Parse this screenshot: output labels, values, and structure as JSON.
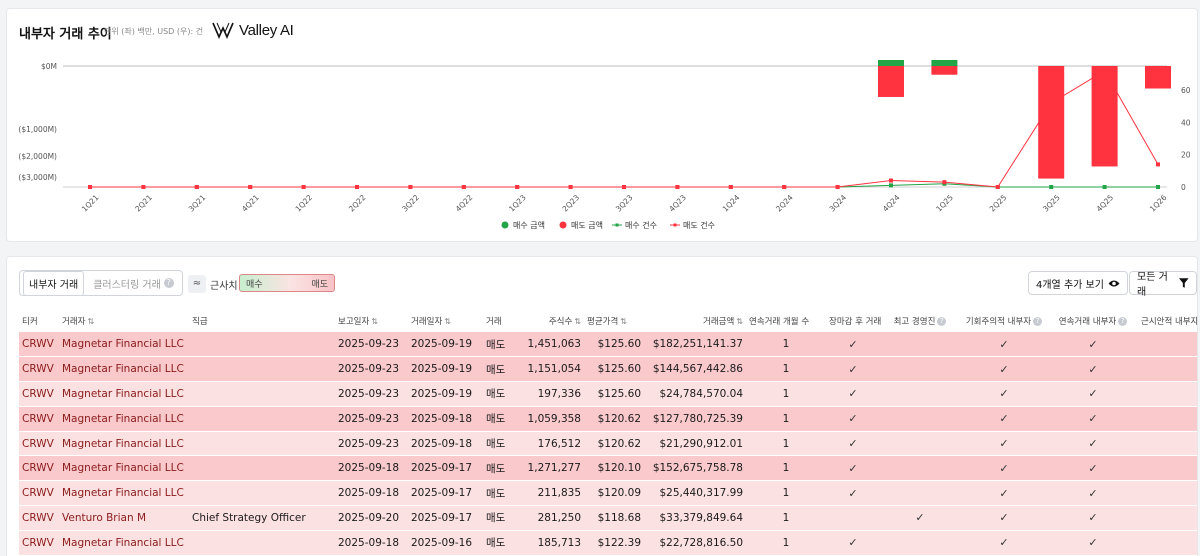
{
  "chart": {
    "title": "내부자 거래 추이",
    "units": "단위 (좌) 백만, USD (우): 건",
    "brand": "Valley AI",
    "legend": [
      "매수 금액",
      "매도 금액",
      "매수 건수",
      "매도 건수"
    ],
    "colors": {
      "buy": "#22a447",
      "sell": "#ff3340"
    }
  },
  "chart_data": {
    "type": "bar",
    "categories": [
      "1Q21",
      "2Q21",
      "3Q21",
      "4Q21",
      "1Q22",
      "2Q22",
      "3Q22",
      "4Q22",
      "1Q23",
      "2Q23",
      "3Q23",
      "4Q23",
      "1Q24",
      "2Q24",
      "3Q24",
      "4Q24",
      "1Q25",
      "2Q25",
      "3Q25",
      "4Q25",
      "1Q26"
    ],
    "y_left_ticks": [
      "$0M",
      "($1,000M)",
      "($2,000M)",
      "($3,000M)"
    ],
    "y_right_ticks": [
      "60",
      "40",
      "20",
      "0"
    ],
    "series": [
      {
        "name": "매수 금액",
        "axis": "left",
        "kind": "bar",
        "values": [
          0,
          0,
          0,
          0,
          0,
          0,
          0,
          0,
          0,
          0,
          0,
          0,
          0,
          0,
          0,
          10,
          18,
          0,
          0,
          0,
          0
        ]
      },
      {
        "name": "매도 금액",
        "axis": "left",
        "kind": "bar",
        "values": [
          0,
          0,
          0,
          0,
          0,
          0,
          0,
          0,
          0,
          0,
          0,
          0,
          0,
          0,
          0,
          -1100,
          -310,
          0,
          -4000,
          -3570,
          -800
        ]
      },
      {
        "name": "매수 건수",
        "axis": "right",
        "kind": "line",
        "values": [
          0,
          0,
          0,
          0,
          0,
          0,
          0,
          0,
          0,
          0,
          0,
          0,
          0,
          0,
          0,
          1,
          2,
          0,
          0,
          0,
          0
        ]
      },
      {
        "name": "매도 건수",
        "axis": "right",
        "kind": "line",
        "values": [
          0,
          0,
          0,
          0,
          0,
          0,
          0,
          0,
          0,
          0,
          0,
          0,
          0,
          0,
          0,
          4,
          3,
          0,
          52,
          72,
          14
        ]
      }
    ],
    "ylim_left": [
      -4300,
      0
    ],
    "ylim_right": [
      0,
      75
    ]
  },
  "toolbar": {
    "tab_insider": "내부자 거래",
    "tab_cluster": "클러스터링 거래",
    "approx_label": "근사치",
    "buy": "매수",
    "sell": "매도",
    "more_cols": "4개열 추가 보기",
    "all_trades": "모든 거래"
  },
  "columns": [
    "티커",
    "거래자",
    "직급",
    "보고일자",
    "거래일자",
    "거래",
    "주식수",
    "평균가격",
    "거래금액",
    "연속거래 개월 수",
    "장마감 후 거래",
    "최고 경영진",
    "기회주의적 내부자",
    "연속거래 내부자",
    "근시안적 내부자"
  ],
  "rows": [
    {
      "ticker": "CRWV",
      "trader": "Magnetar Financial LLC",
      "title": "",
      "report": "2025-09-23",
      "trade_date": "2025-09-19",
      "type": "매도",
      "shares": "1,451,063",
      "price": "$125.60",
      "amount": "$182,251,141.37",
      "months": "1",
      "after": true,
      "exec": false,
      "opp": true,
      "cons": true,
      "myopic": false,
      "shade": "dark"
    },
    {
      "ticker": "CRWV",
      "trader": "Magnetar Financial LLC",
      "title": "",
      "report": "2025-09-23",
      "trade_date": "2025-09-19",
      "type": "매도",
      "shares": "1,151,054",
      "price": "$125.60",
      "amount": "$144,567,442.86",
      "months": "1",
      "after": true,
      "exec": false,
      "opp": true,
      "cons": true,
      "myopic": false,
      "shade": "dark"
    },
    {
      "ticker": "CRWV",
      "trader": "Magnetar Financial LLC",
      "title": "",
      "report": "2025-09-23",
      "trade_date": "2025-09-19",
      "type": "매도",
      "shares": "197,336",
      "price": "$125.60",
      "amount": "$24,784,570.04",
      "months": "1",
      "after": true,
      "exec": false,
      "opp": true,
      "cons": true,
      "myopic": false,
      "shade": "light"
    },
    {
      "ticker": "CRWV",
      "trader": "Magnetar Financial LLC",
      "title": "",
      "report": "2025-09-23",
      "trade_date": "2025-09-18",
      "type": "매도",
      "shares": "1,059,358",
      "price": "$120.62",
      "amount": "$127,780,725.39",
      "months": "1",
      "after": true,
      "exec": false,
      "opp": true,
      "cons": true,
      "myopic": false,
      "shade": "dark"
    },
    {
      "ticker": "CRWV",
      "trader": "Magnetar Financial LLC",
      "title": "",
      "report": "2025-09-23",
      "trade_date": "2025-09-18",
      "type": "매도",
      "shares": "176,512",
      "price": "$120.62",
      "amount": "$21,290,912.01",
      "months": "1",
      "after": true,
      "exec": false,
      "opp": true,
      "cons": true,
      "myopic": false,
      "shade": "light"
    },
    {
      "ticker": "CRWV",
      "trader": "Magnetar Financial LLC",
      "title": "",
      "report": "2025-09-18",
      "trade_date": "2025-09-17",
      "type": "매도",
      "shares": "1,271,277",
      "price": "$120.10",
      "amount": "$152,675,758.78",
      "months": "1",
      "after": true,
      "exec": false,
      "opp": true,
      "cons": true,
      "myopic": false,
      "shade": "dark"
    },
    {
      "ticker": "CRWV",
      "trader": "Magnetar Financial LLC",
      "title": "",
      "report": "2025-09-18",
      "trade_date": "2025-09-17",
      "type": "매도",
      "shares": "211,835",
      "price": "$120.09",
      "amount": "$25,440,317.99",
      "months": "1",
      "after": true,
      "exec": false,
      "opp": true,
      "cons": true,
      "myopic": false,
      "shade": "light"
    },
    {
      "ticker": "CRWV",
      "trader": "Venturo Brian M",
      "title": "Chief Strategy Officer",
      "report": "2025-09-20",
      "trade_date": "2025-09-17",
      "type": "매도",
      "shares": "281,250",
      "price": "$118.68",
      "amount": "$33,379,849.64",
      "months": "1",
      "after": false,
      "exec": true,
      "opp": true,
      "cons": true,
      "myopic": false,
      "shade": "light"
    },
    {
      "ticker": "CRWV",
      "trader": "Magnetar Financial LLC",
      "title": "",
      "report": "2025-09-18",
      "trade_date": "2025-09-16",
      "type": "매도",
      "shares": "185,713",
      "price": "$122.39",
      "amount": "$22,728,816.50",
      "months": "1",
      "after": true,
      "exec": false,
      "opp": true,
      "cons": true,
      "myopic": false,
      "shade": "light"
    }
  ],
  "check_glyph": "✓"
}
